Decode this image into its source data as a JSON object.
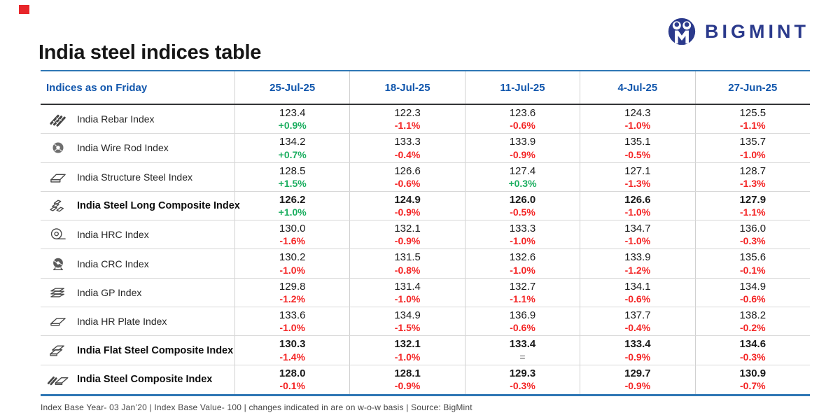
{
  "brand": {
    "logo_text": "BIGMINT",
    "logo_navy": "#2b3a8c",
    "red_square_color": "#e8262a"
  },
  "header": {
    "title": "India steel indices table"
  },
  "chart_data": {
    "type": "table",
    "title": "India steel indices table",
    "corner_header": "Indices as on Friday",
    "columns": [
      "25-Jul-25",
      "18-Jul-25",
      "11-Jul-25",
      "4-Jul-25",
      "27-Jun-25"
    ],
    "rows": [
      {
        "label": "India Rebar Index",
        "icon": "rebar-icon",
        "bold": false,
        "values": [
          "123.4",
          "122.3",
          "123.6",
          "124.3",
          "125.5"
        ],
        "changes": [
          "+0.9%",
          "-1.1%",
          "-0.6%",
          "-1.0%",
          "-1.1%"
        ],
        "change_dirs": [
          "up",
          "down",
          "down",
          "down",
          "down"
        ]
      },
      {
        "label": "India Wire Rod Index",
        "icon": "wire-rod-coil-icon",
        "bold": false,
        "values": [
          "134.2",
          "133.3",
          "133.9",
          "135.1",
          "135.7"
        ],
        "changes": [
          "+0.7%",
          "-0.4%",
          "-0.9%",
          "-0.5%",
          "-1.0%"
        ],
        "change_dirs": [
          "up",
          "down",
          "down",
          "down",
          "down"
        ]
      },
      {
        "label": "India Structure Steel Index",
        "icon": "structure-steel-icon",
        "bold": false,
        "values": [
          "128.5",
          "126.6",
          "127.4",
          "127.1",
          "128.7"
        ],
        "changes": [
          "+1.5%",
          "-0.6%",
          "+0.3%",
          "-1.3%",
          "-1.3%"
        ],
        "change_dirs": [
          "up",
          "down",
          "up",
          "down",
          "down"
        ]
      },
      {
        "label": "India Steel Long Composite Index",
        "icon": "long-steel-stack-icon",
        "bold": true,
        "values": [
          "126.2",
          "124.9",
          "126.0",
          "126.6",
          "127.9"
        ],
        "changes": [
          "+1.0%",
          "-0.9%",
          "-0.5%",
          "-1.0%",
          "-1.1%"
        ],
        "change_dirs": [
          "up",
          "down",
          "down",
          "down",
          "down"
        ]
      },
      {
        "label": "India HRC Index",
        "icon": "hrc-coil-icon",
        "bold": false,
        "values": [
          "130.0",
          "132.1",
          "133.3",
          "134.7",
          "136.0"
        ],
        "changes": [
          "-1.6%",
          "-0.9%",
          "-1.0%",
          "-1.0%",
          "-0.3%"
        ],
        "change_dirs": [
          "down",
          "down",
          "down",
          "down",
          "down"
        ]
      },
      {
        "label": "India CRC Index",
        "icon": "crc-coil-icon",
        "bold": false,
        "values": [
          "130.2",
          "131.5",
          "132.6",
          "133.9",
          "135.6"
        ],
        "changes": [
          "-1.0%",
          "-0.8%",
          "-1.0%",
          "-1.2%",
          "-0.1%"
        ],
        "change_dirs": [
          "down",
          "down",
          "down",
          "down",
          "down"
        ]
      },
      {
        "label": "India GP Index",
        "icon": "gp-sheets-icon",
        "bold": false,
        "values": [
          "129.8",
          "131.4",
          "132.7",
          "134.1",
          "134.9"
        ],
        "changes": [
          "-1.2%",
          "-1.0%",
          "-1.1%",
          "-0.6%",
          "-0.6%"
        ],
        "change_dirs": [
          "down",
          "down",
          "down",
          "down",
          "down"
        ]
      },
      {
        "label": "India HR Plate Index",
        "icon": "hr-plate-icon",
        "bold": false,
        "values": [
          "133.6",
          "134.9",
          "136.9",
          "137.7",
          "138.2"
        ],
        "changes": [
          "-1.0%",
          "-1.5%",
          "-0.6%",
          "-0.4%",
          "-0.2%"
        ],
        "change_dirs": [
          "down",
          "down",
          "down",
          "down",
          "down"
        ]
      },
      {
        "label": "India Flat Steel Composite Index",
        "icon": "flat-steel-stack-icon",
        "bold": true,
        "values": [
          "130.3",
          "132.1",
          "133.4",
          "133.4",
          "134.6"
        ],
        "changes": [
          "-1.4%",
          "-1.0%",
          "=",
          "-0.9%",
          "-0.3%"
        ],
        "change_dirs": [
          "down",
          "down",
          "eq",
          "down",
          "down"
        ]
      },
      {
        "label": "India Steel Composite Index",
        "icon": "steel-composite-icon",
        "bold": true,
        "values": [
          "128.0",
          "128.1",
          "129.3",
          "129.7",
          "130.9"
        ],
        "changes": [
          "-0.1%",
          "-0.9%",
          "-0.3%",
          "-0.9%",
          "-0.7%"
        ],
        "change_dirs": [
          "down",
          "down",
          "down",
          "down",
          "down"
        ]
      }
    ],
    "footnote": "Index Base Year- 03 Jan’20 | Index Base Value- 100 | changes indicated in are on w-o-w basis | Source: BigMint"
  },
  "colors": {
    "positive": "#1cae60",
    "negative": "#f42525",
    "neutral": "#58585a",
    "header_blue": "#1257ad",
    "table_border_blue": "#2f77b5"
  }
}
